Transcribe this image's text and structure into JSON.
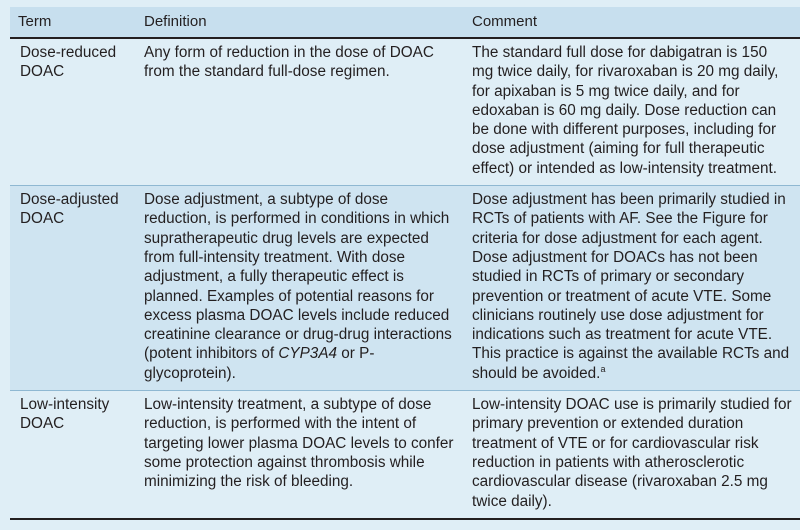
{
  "headers": {
    "term": "Term",
    "definition": "Definition",
    "comment": "Comment"
  },
  "rows": [
    {
      "term_line1": "Dose-reduced",
      "term_line2": "DOAC",
      "definition": "Any form of reduction in the dose of DOAC from the standard full-dose regimen.",
      "comment": "The standard full dose for dabigatran is 150 mg twice daily, for rivaroxaban is 20 mg daily, for apixaban is 5 mg twice daily, and for edoxaban is 60 mg daily. Dose reduction can be done with different purposes, including for dose adjustment (aiming for full therapeutic effect) or intended as low-intensity treatment."
    },
    {
      "term_line1": "Dose-adjusted",
      "term_line2": "DOAC",
      "definition_pre": "Dose adjustment, a subtype of dose reduction, is performed in conditions in which supratherapeutic drug levels are expected from full-intensity treatment. With dose adjustment, a fully therapeutic effect is planned. Examples of potential reasons for excess plasma DOAC levels include reduced creatinine clearance or drug-drug interactions (potent inhibitors of ",
      "definition_italic": "CYP3A4",
      "definition_post": " or P-glycoprotein).",
      "comment": "Dose adjustment has been primarily studied in RCTs of patients with AF. See the Figure for criteria for dose adjustment for each agent. Dose adjustment for DOACs has not been studied in RCTs of primary or secondary prevention or treatment of acute VTE. Some clinicians routinely use dose adjustment for indications such as treatment for acute VTE. This practice is against the available RCTs and should be avoided.",
      "comment_footnote": "a"
    },
    {
      "term_line1": "Low-intensity",
      "term_line2": "DOAC",
      "definition": "Low-intensity treatment, a subtype of dose reduction, is performed with the intent of targeting lower plasma DOAC levels to confer some protection against thrombosis while minimizing the risk of bleeding.",
      "comment": "Low-intensity DOAC use is primarily studied for primary prevention or extended duration treatment of VTE or for cardiovascular risk reduction in patients with atherosclerotic cardiovascular disease (rivaroxaban 2.5 mg twice daily)."
    }
  ]
}
